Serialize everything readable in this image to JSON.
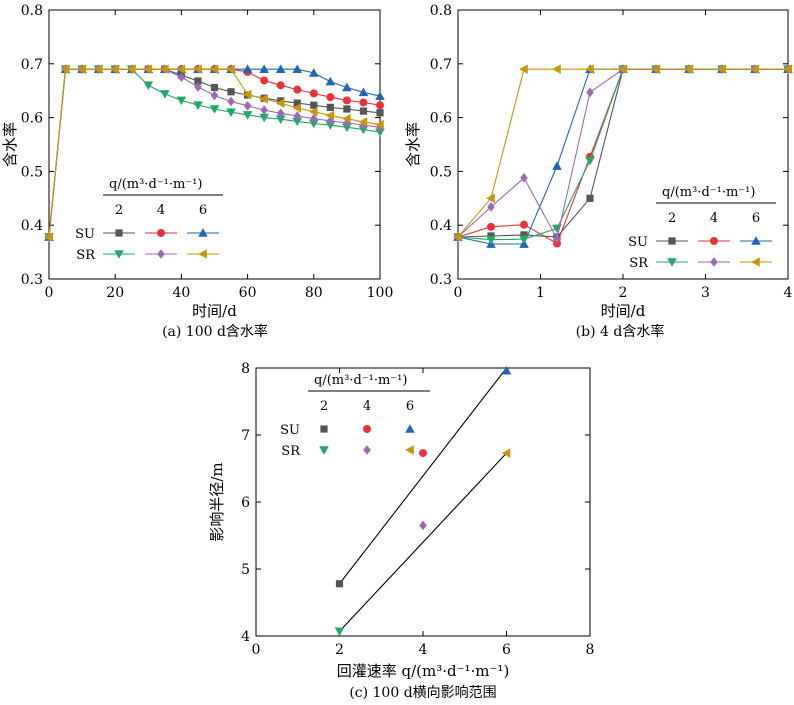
{
  "chart_data": [
    {
      "type": "line",
      "caption": "(a) 100 d含水率",
      "xlabel": "时间/d",
      "ylabel": "含水率",
      "xlim": [
        0,
        100
      ],
      "ylim": [
        0.3,
        0.8
      ],
      "xticks": [
        "0",
        "20",
        "40",
        "60",
        "80",
        "100"
      ],
      "yticks": [
        "0.3",
        "0.4",
        "0.5",
        "0.6",
        "0.7",
        "0.8"
      ],
      "legend": {
        "header": "q/(m³·d⁻¹·m⁻¹)",
        "rates": [
          "2",
          "4",
          "6"
        ],
        "rows": [
          "SU",
          "SR"
        ]
      },
      "series": [
        {
          "name": "SU",
          "rate": "2",
          "color": "#555555",
          "marker": "square",
          "x": [
            0,
            5,
            10,
            15,
            20,
            25,
            30,
            35,
            40,
            45,
            50,
            55,
            60,
            65,
            70,
            75,
            80,
            85,
            90,
            95,
            100
          ],
          "y": [
            0.378,
            0.69,
            0.69,
            0.69,
            0.69,
            0.69,
            0.69,
            0.69,
            0.679,
            0.668,
            0.656,
            0.648,
            0.642,
            0.636,
            0.631,
            0.627,
            0.623,
            0.619,
            0.616,
            0.612,
            0.609
          ]
        },
        {
          "name": "",
          "rate": "4",
          "color": "#e8323a",
          "marker": "circle",
          "x": [
            0,
            5,
            10,
            15,
            20,
            25,
            30,
            35,
            40,
            45,
            50,
            55,
            60,
            65,
            70,
            75,
            80,
            85,
            90,
            95,
            100
          ],
          "y": [
            0.378,
            0.69,
            0.69,
            0.69,
            0.69,
            0.69,
            0.69,
            0.69,
            0.69,
            0.69,
            0.69,
            0.69,
            0.685,
            0.669,
            0.66,
            0.652,
            0.645,
            0.638,
            0.632,
            0.628,
            0.623
          ]
        },
        {
          "name": "",
          "rate": "6",
          "color": "#1f66b5",
          "marker": "triangle",
          "x": [
            0,
            5,
            10,
            15,
            20,
            25,
            30,
            35,
            40,
            45,
            50,
            55,
            60,
            65,
            70,
            75,
            80,
            85,
            90,
            95,
            100
          ],
          "y": [
            0.378,
            0.69,
            0.69,
            0.69,
            0.69,
            0.69,
            0.69,
            0.69,
            0.69,
            0.69,
            0.69,
            0.69,
            0.69,
            0.69,
            0.69,
            0.69,
            0.683,
            0.667,
            0.656,
            0.647,
            0.64
          ]
        },
        {
          "name": "SR",
          "rate": "2",
          "color": "#22a868",
          "marker": "triangle-down",
          "x": [
            0,
            5,
            10,
            15,
            20,
            25,
            30,
            35,
            40,
            45,
            50,
            55,
            60,
            65,
            70,
            75,
            80,
            85,
            90,
            95,
            100
          ],
          "y": [
            0.378,
            0.69,
            0.69,
            0.69,
            0.69,
            0.69,
            0.66,
            0.644,
            0.632,
            0.623,
            0.616,
            0.61,
            0.605,
            0.6,
            0.597,
            0.593,
            0.589,
            0.586,
            0.582,
            0.578,
            0.573
          ]
        },
        {
          "name": "",
          "rate": "4",
          "color": "#9c6ab4",
          "marker": "diamond",
          "x": [
            0,
            5,
            10,
            15,
            20,
            25,
            30,
            35,
            40,
            45,
            50,
            55,
            60,
            65,
            70,
            75,
            80,
            85,
            90,
            95,
            100
          ],
          "y": [
            0.378,
            0.69,
            0.69,
            0.69,
            0.69,
            0.69,
            0.69,
            0.69,
            0.675,
            0.657,
            0.641,
            0.63,
            0.622,
            0.614,
            0.608,
            0.603,
            0.598,
            0.594,
            0.59,
            0.586,
            0.582
          ]
        },
        {
          "name": "",
          "rate": "6",
          "color": "#c8960a",
          "marker": "triangle-left",
          "x": [
            0,
            5,
            10,
            15,
            20,
            25,
            30,
            35,
            40,
            45,
            50,
            55,
            60,
            65,
            70,
            75,
            80,
            85,
            90,
            95,
            100
          ],
          "y": [
            0.378,
            0.69,
            0.69,
            0.69,
            0.69,
            0.69,
            0.69,
            0.69,
            0.69,
            0.69,
            0.69,
            0.69,
            0.643,
            0.635,
            0.627,
            0.618,
            0.611,
            0.604,
            0.598,
            0.592,
            0.587
          ]
        }
      ]
    },
    {
      "type": "line",
      "caption": "(b) 4 d含水率",
      "xlabel": "时间/d",
      "ylabel": "含水率",
      "xlim": [
        0,
        4
      ],
      "ylim": [
        0.3,
        0.8
      ],
      "xticks": [
        "0",
        "1",
        "2",
        "3",
        "4"
      ],
      "yticks": [
        "0.3",
        "0.4",
        "0.5",
        "0.6",
        "0.7",
        "0.8"
      ],
      "legend": {
        "header": "q/(m³·d⁻¹·m⁻¹)",
        "rates": [
          "2",
          "4",
          "6"
        ],
        "rows": [
          "SU",
          "SR"
        ]
      },
      "series": [
        {
          "name": "SU",
          "rate": "2",
          "color": "#555555",
          "marker": "square",
          "x": [
            0,
            0.4,
            0.8,
            1.2,
            1.6,
            2.0,
            2.4,
            2.8,
            3.2,
            3.6,
            4.0
          ],
          "y": [
            0.378,
            0.38,
            0.382,
            0.378,
            0.45,
            0.69,
            0.69,
            0.69,
            0.69,
            0.69,
            0.69
          ]
        },
        {
          "name": "",
          "rate": "4",
          "color": "#e8323a",
          "marker": "circle",
          "x": [
            0,
            0.4,
            0.8,
            1.2,
            1.6,
            2.0,
            2.4,
            2.8,
            3.2,
            3.6,
            4.0
          ],
          "y": [
            0.378,
            0.397,
            0.401,
            0.366,
            0.527,
            0.69,
            0.69,
            0.69,
            0.69,
            0.69,
            0.69
          ]
        },
        {
          "name": "",
          "rate": "6",
          "color": "#1f66b5",
          "marker": "triangle",
          "x": [
            0,
            0.4,
            0.8,
            1.2,
            1.6,
            2.0,
            2.4,
            2.8,
            3.2,
            3.6,
            4.0
          ],
          "y": [
            0.378,
            0.365,
            0.365,
            0.51,
            0.69,
            0.69,
            0.69,
            0.69,
            0.69,
            0.69,
            0.69
          ]
        },
        {
          "name": "SR",
          "rate": "2",
          "color": "#22a868",
          "marker": "triangle-down",
          "x": [
            0,
            0.4,
            0.8,
            1.2,
            1.6,
            2.0,
            2.4,
            2.8,
            3.2,
            3.6,
            4.0
          ],
          "y": [
            0.378,
            0.373,
            0.374,
            0.394,
            0.52,
            0.69,
            0.69,
            0.69,
            0.69,
            0.69,
            0.69
          ]
        },
        {
          "name": "",
          "rate": "4",
          "color": "#9c6ab4",
          "marker": "diamond",
          "x": [
            0,
            0.4,
            0.8,
            1.2,
            1.6,
            2.0,
            2.4,
            2.8,
            3.2,
            3.6,
            4.0
          ],
          "y": [
            0.378,
            0.434,
            0.488,
            0.375,
            0.647,
            0.69,
            0.69,
            0.69,
            0.69,
            0.69,
            0.69
          ]
        },
        {
          "name": "",
          "rate": "6",
          "color": "#c8960a",
          "marker": "triangle-left",
          "x": [
            0,
            0.4,
            0.8,
            1.2,
            1.6,
            2.0,
            2.4,
            2.8,
            3.2,
            3.6,
            4.0
          ],
          "y": [
            0.378,
            0.45,
            0.69,
            0.69,
            0.69,
            0.69,
            0.69,
            0.69,
            0.69,
            0.69,
            0.69
          ]
        }
      ]
    },
    {
      "type": "scatter",
      "caption": "(c) 100 d横向影响范围",
      "xlabel": "回灌速率 q/(m³·d⁻¹·m⁻¹)",
      "ylabel": "影响半径/m",
      "xlim": [
        0,
        8
      ],
      "ylim": [
        4,
        8
      ],
      "xticks": [
        "0",
        "2",
        "4",
        "6",
        "8"
      ],
      "yticks": [
        "4",
        "5",
        "6",
        "7",
        "8"
      ],
      "legend": {
        "header": "q/(m³·d⁻¹·m⁻¹)",
        "rates": [
          "2",
          "4",
          "6"
        ],
        "rows": [
          "SU",
          "SR"
        ]
      },
      "series": [
        {
          "name": "SU",
          "rate": "2",
          "color": "#555555",
          "marker": "square",
          "x": [
            2
          ],
          "y": [
            4.78
          ]
        },
        {
          "name": "",
          "rate": "4",
          "color": "#e8323a",
          "marker": "circle",
          "x": [
            4
          ],
          "y": [
            6.73
          ]
        },
        {
          "name": "",
          "rate": "6",
          "color": "#1f66b5",
          "marker": "triangle",
          "x": [
            6
          ],
          "y": [
            7.96
          ]
        },
        {
          "name": "SR",
          "rate": "2",
          "color": "#22a868",
          "marker": "triangle-down",
          "x": [
            2
          ],
          "y": [
            4.07
          ]
        },
        {
          "name": "",
          "rate": "4",
          "color": "#9c6ab4",
          "marker": "diamond",
          "x": [
            4
          ],
          "y": [
            5.65
          ]
        },
        {
          "name": "",
          "rate": "6",
          "color": "#c8960a",
          "marker": "triangle-left",
          "x": [
            6
          ],
          "y": [
            6.73
          ]
        }
      ],
      "fit_lines": [
        {
          "x": [
            2,
            6
          ],
          "y": [
            4.78,
            8.0
          ]
        },
        {
          "x": [
            2,
            6
          ],
          "y": [
            4.07,
            6.73
          ]
        }
      ]
    }
  ]
}
